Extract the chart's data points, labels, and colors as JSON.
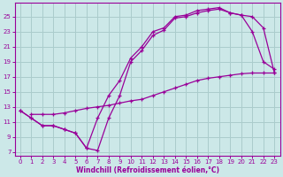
{
  "bg_color": "#cce8e8",
  "grid_color": "#aacccc",
  "line_color": "#990099",
  "xlabel": "Windchill (Refroidissement éolien,°C)",
  "ylim": [
    7,
    26
  ],
  "xlim": [
    -0.5,
    23.5
  ],
  "yticks": [
    7,
    9,
    11,
    13,
    15,
    17,
    19,
    21,
    23,
    25
  ],
  "xticks": [
    0,
    1,
    2,
    3,
    4,
    5,
    6,
    7,
    8,
    9,
    10,
    11,
    12,
    13,
    14,
    15,
    16,
    17,
    18,
    19,
    20,
    21,
    22,
    23
  ],
  "line1_x": [
    0,
    1,
    2,
    3,
    4,
    5,
    6,
    7,
    8,
    9,
    10,
    11,
    12,
    13,
    14,
    15,
    16,
    17,
    18,
    19,
    20,
    21,
    22,
    23
  ],
  "line1_y": [
    12.5,
    11.5,
    10.5,
    10.5,
    10.0,
    9.5,
    7.5,
    7.2,
    11.5,
    14.5,
    19.0,
    20.5,
    22.5,
    23.2,
    24.8,
    25.0,
    25.5,
    25.8,
    26.0,
    25.5,
    25.2,
    23.0,
    19.0,
    18.0
  ],
  "line2_x": [
    0,
    1,
    2,
    3,
    4,
    5,
    6,
    7,
    8,
    9,
    10,
    11,
    12,
    13,
    14,
    15,
    16,
    17,
    18,
    19,
    20,
    21,
    22,
    23
  ],
  "line2_y": [
    12.5,
    11.5,
    10.5,
    10.5,
    10.0,
    9.5,
    7.5,
    11.5,
    14.5,
    16.5,
    19.5,
    21.0,
    23.0,
    23.5,
    25.0,
    25.2,
    25.8,
    26.0,
    26.2,
    25.5,
    25.2,
    25.0,
    23.5,
    17.5
  ],
  "line3_x": [
    1,
    2,
    3,
    4,
    5,
    6,
    7,
    8,
    9,
    10,
    11,
    12,
    13,
    14,
    15,
    16,
    17,
    18,
    19,
    20,
    21,
    22,
    23
  ],
  "line3_y": [
    12.0,
    12.0,
    12.0,
    12.2,
    12.5,
    12.8,
    13.0,
    13.2,
    13.5,
    13.8,
    14.0,
    14.5,
    15.0,
    15.5,
    16.0,
    16.5,
    16.8,
    17.0,
    17.2,
    17.4,
    17.5,
    17.5,
    17.5
  ]
}
